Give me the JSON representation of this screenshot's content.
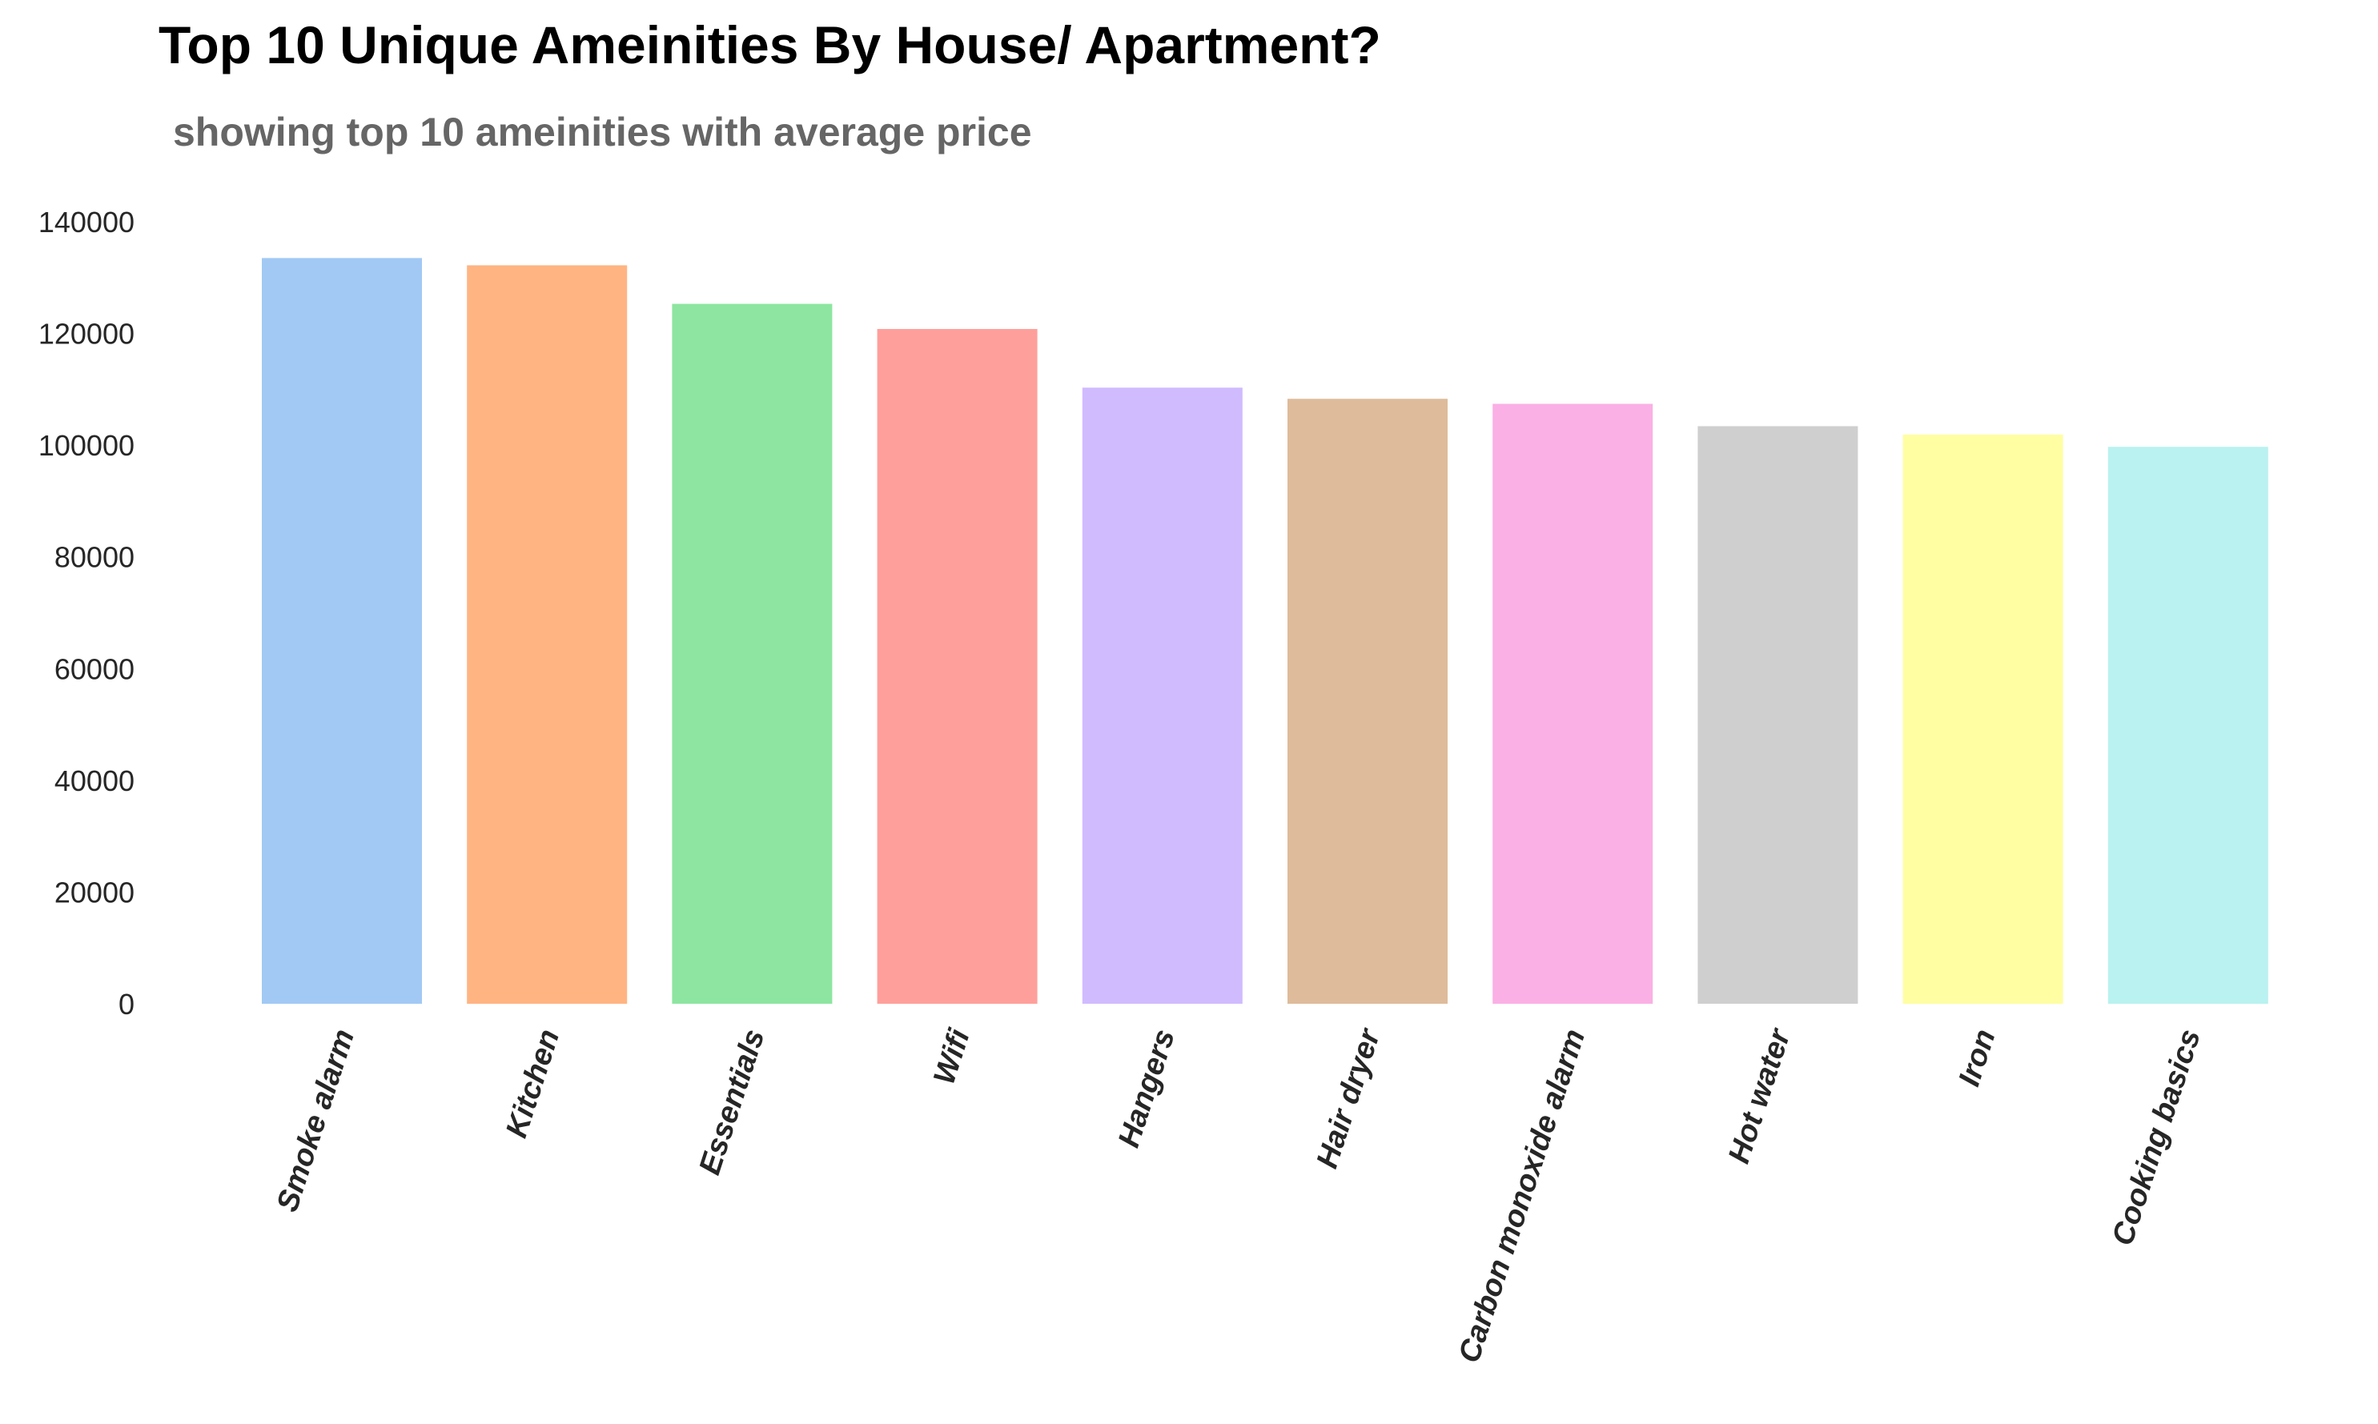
{
  "chart_data": {
    "type": "bar",
    "title": "Top 10 Unique Ameinities By House/ Apartment?",
    "subtitle": "showing top 10 ameinities with average price",
    "xlabel": "",
    "ylabel": "",
    "categories": [
      "Smoke alarm",
      "Kitchen",
      "Essentials",
      "Wifi",
      "Hangers",
      "Hair dryer",
      "Carbon monoxide alarm",
      "Hot water",
      "Iron",
      "Cooking basics"
    ],
    "values": [
      133500,
      132200,
      125300,
      120800,
      110300,
      108300,
      107400,
      103400,
      101900,
      99700
    ],
    "colors": [
      "#a1c9f4",
      "#ffb482",
      "#8de5a1",
      "#ff9f9b",
      "#d0bbff",
      "#debb9b",
      "#fab0e4",
      "#cfcfcf",
      "#fffea3",
      "#b9f2f0"
    ],
    "ylim": [
      0,
      140000
    ],
    "yticks": [
      "0",
      "20000",
      "40000",
      "60000",
      "80000",
      "100000",
      "120000",
      "140000"
    ],
    "grid": false,
    "legend": "none"
  }
}
